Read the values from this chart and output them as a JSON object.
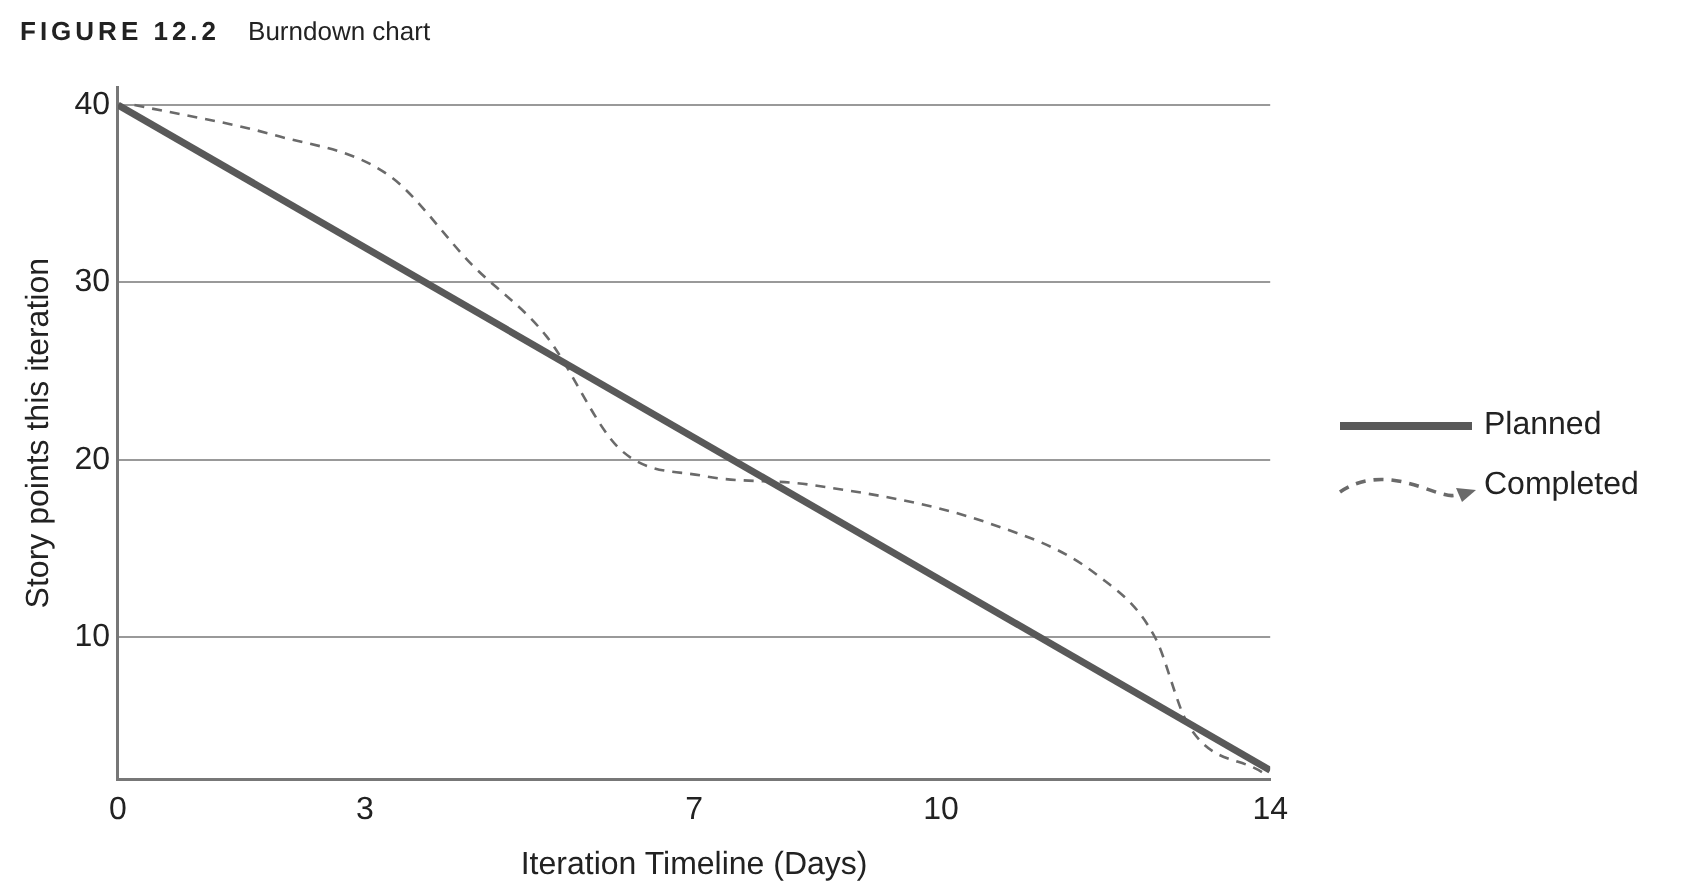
{
  "chart_data": {
    "type": "line",
    "title": "FIGURE 12.2",
    "subtitle": "Burndown chart",
    "xlabel": "Iteration Timeline (Days)",
    "ylabel": "Story points this iteration",
    "xlim": [
      0,
      14
    ],
    "xticks": [
      0,
      3,
      7,
      10,
      14
    ],
    "ylim": [
      2,
      41
    ],
    "yticks": [
      10,
      20,
      30,
      40
    ],
    "grid": "y",
    "legend": "right",
    "marker": "none",
    "series": [
      {
        "name": "Planned",
        "color": "#595959",
        "line_style": "solid",
        "x": [
          0,
          14
        ],
        "values": [
          40,
          2.5
        ]
      },
      {
        "name": "Completed",
        "color": "#6a6a6a",
        "line_style": "dashed",
        "x": [
          0.2,
          1.9,
          3.3,
          4.3,
          5.2,
          6.1,
          7.1,
          8.4,
          10.6,
          11.9,
          12.6,
          13,
          13.9
        ],
        "values": [
          40,
          38.3,
          36,
          31,
          27,
          20.6,
          19.1,
          18.6,
          16.4,
          13.5,
          10,
          5.1,
          2.4
        ]
      }
    ]
  }
}
